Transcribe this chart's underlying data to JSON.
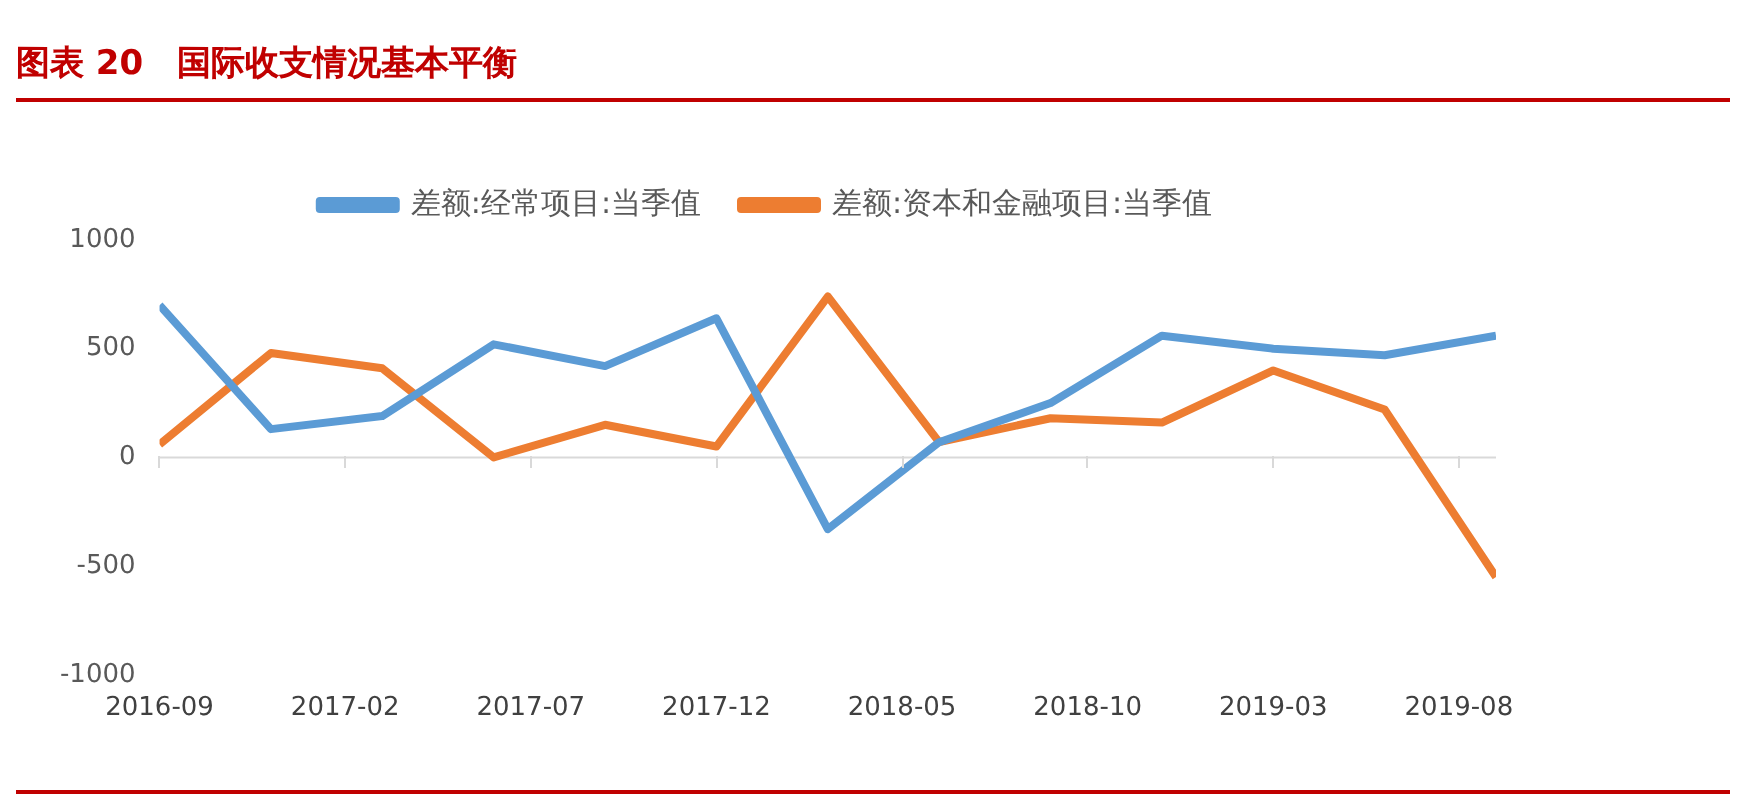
{
  "chart_data": {
    "type": "line",
    "title": "图表 20　国际收支情况基本平衡",
    "x": [
      "2016-09",
      "2016-12",
      "2017-03",
      "2017-06",
      "2017-09",
      "2017-12",
      "2018-03",
      "2018-06",
      "2018-09",
      "2018-12",
      "2019-03",
      "2019-06",
      "2019-09"
    ],
    "series": [
      {
        "name": "差额:经常项目:当季值",
        "color": "#5b9bd5",
        "values": [
          700,
          130,
          190,
          520,
          420,
          640,
          -330,
          70,
          250,
          560,
          500,
          470,
          560
        ]
      },
      {
        "name": "差额:资本和金融项目:当季值",
        "color": "#ed7d31",
        "values": [
          60,
          480,
          410,
          0,
          150,
          50,
          740,
          70,
          180,
          160,
          400,
          220,
          -550
        ]
      }
    ],
    "xlim": [
      "2016-09",
      "2019-09"
    ],
    "xticks": [
      "2016-09",
      "2017-02",
      "2017-07",
      "2017-12",
      "2018-05",
      "2018-10",
      "2019-03",
      "2019-08"
    ],
    "ylim": [
      -1000,
      1000
    ],
    "yticks": [
      -1000,
      -500,
      0,
      500,
      1000
    ],
    "ref_lines": [
      {
        "axis": "y",
        "value": 0,
        "color": "#d9d9d9"
      }
    ],
    "grid": false,
    "legend": "top",
    "marker": "none",
    "line_style": "solid"
  }
}
